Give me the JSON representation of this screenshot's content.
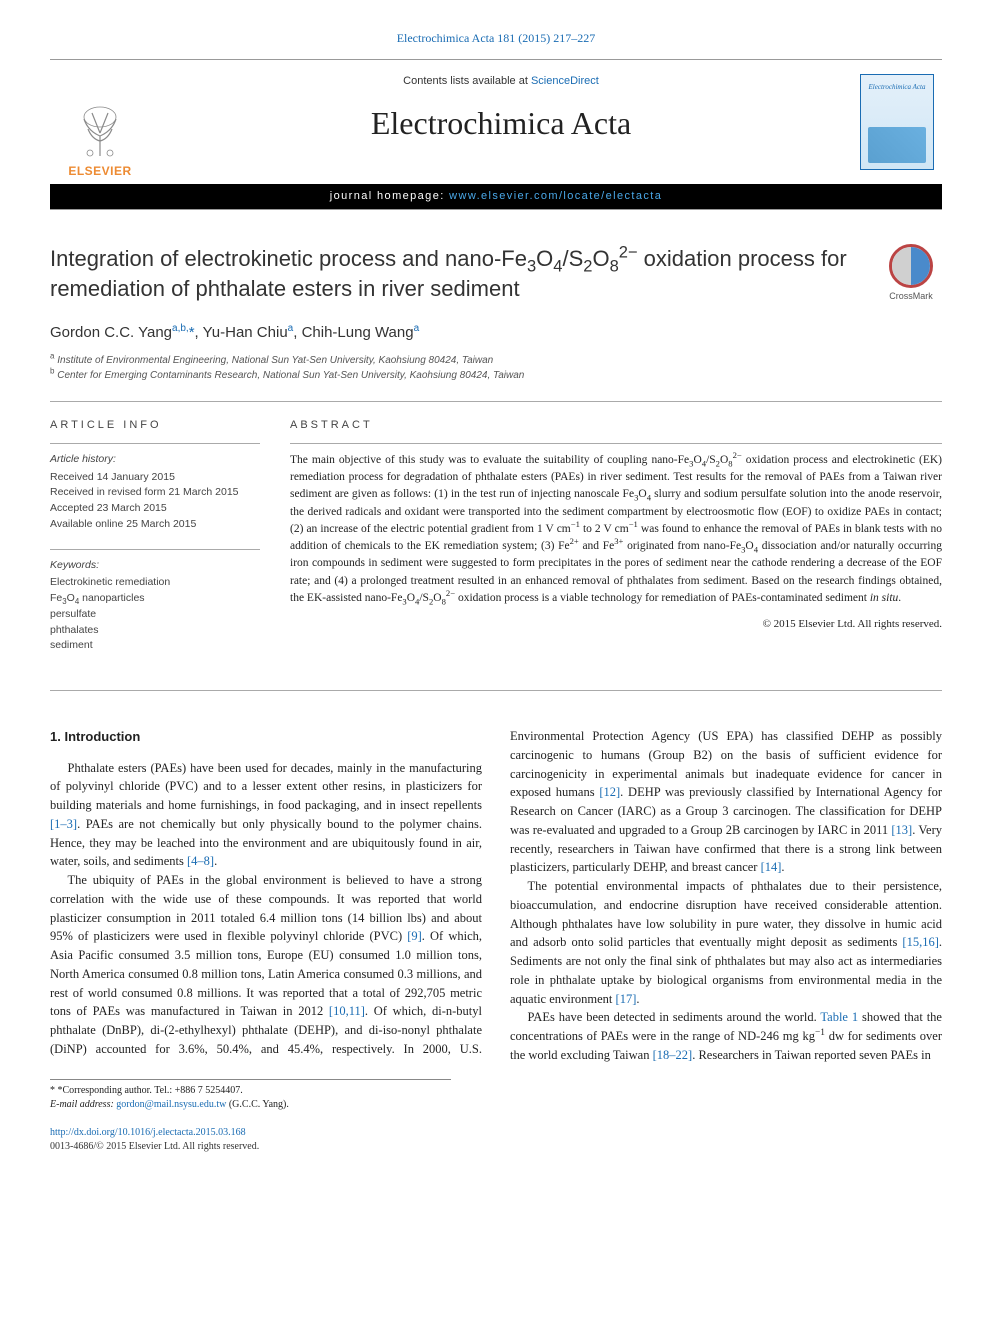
{
  "colors": {
    "link": "#1a6cb3",
    "text": "#222222",
    "elsevier_orange": "#ed8b33",
    "rule": "#aaaaaa",
    "black_bar_bg": "#000000",
    "black_bar_link": "#4aa8e8"
  },
  "typography": {
    "body_font": "Georgia, 'Times New Roman', serif",
    "ui_font": "Arial, sans-serif",
    "journal_title_pt": 32,
    "article_title_pt": 22,
    "authors_pt": 15,
    "abstract_pt": 11.5,
    "body_pt": 12.5,
    "footnote_pt": 10
  },
  "top_citation": "Electrochimica Acta 181 (2015) 217–227",
  "header": {
    "contents_prefix": "Contents lists available at ",
    "contents_link": "ScienceDirect",
    "journal_title": "Electrochimica Acta",
    "homepage_prefix": "journal homepage: ",
    "homepage_url": "www.elsevier.com/locate/electacta",
    "publisher_logo_text": "ELSEVIER",
    "cover_title": "Electrochimica Acta"
  },
  "crossmark_label": "CrossMark",
  "article": {
    "title_html": "Integration of electrokinetic process and nano-Fe<sub>3</sub>O<sub>4</sub>/S<sub>2</sub>O<sub>8</sub><sup>2−</sup> oxidation process for remediation of phthalate esters in river sediment",
    "authors_html": "Gordon C.C. Yang<sup><a>a</a>,<a>b</a>,</sup><span class=\"star\">*</span>, Yu-Han Chiu<sup><a>a</a></sup>, Chih-Lung Wang<sup><a>a</a></sup>",
    "affiliations": [
      "a Institute of Environmental Engineering, National Sun Yat-Sen University, Kaohsiung 80424, Taiwan",
      "b Center for Emerging Contaminants Research, National Sun Yat-Sen University, Kaohsiung 80424, Taiwan"
    ]
  },
  "article_info": {
    "heading": "ARTICLE INFO",
    "history_label": "Article history:",
    "history": [
      "Received 14 January 2015",
      "Received in revised form 21 March 2015",
      "Accepted 23 March 2015",
      "Available online 25 March 2015"
    ],
    "keywords_label": "Keywords:",
    "keywords": [
      "Electrokinetic remediation",
      "Fe3O4 nanoparticles",
      "persulfate",
      "phthalates",
      "sediment"
    ]
  },
  "abstract": {
    "heading": "ABSTRACT",
    "text_html": "The main objective of this study was to evaluate the suitability of coupling nano-Fe<sub>3</sub>O<sub>4</sub>/S<sub>2</sub>O<sub>8</sub><sup>2−</sup> oxidation process and electrokinetic (EK) remediation process for degradation of phthalate esters (PAEs) in river sediment. Test results for the removal of PAEs from a Taiwan river sediment are given as follows: (1) in the test run of injecting nanoscale Fe<sub>3</sub>O<sub>4</sub> slurry and sodium persulfate solution into the anode reservoir, the derived radicals and oxidant were transported into the sediment compartment by electroosmotic flow (EOF) to oxidize PAEs in contact; (2) an increase of the electric potential gradient from 1 V cm<sup>−1</sup> to 2 V cm<sup>−1</sup> was found to enhance the removal of PAEs in blank tests with no addition of chemicals to the EK remediation system; (3) Fe<sup>2+</sup> and Fe<sup>3+</sup> originated from nano-Fe<sub>3</sub>O<sub>4</sub> dissociation and/or naturally occurring iron compounds in sediment were suggested to form precipitates in the pores of sediment near the cathode rendering a decrease of the EOF rate; and (4) a prolonged treatment resulted in an enhanced removal of phthalates from sediment. Based on the research findings obtained, the EK-assisted nano-Fe<sub>3</sub>O<sub>4</sub>/S<sub>2</sub>O<sub>8</sub><sup>2−</sup> oxidation process is a viable technology for remediation of PAEs-contaminated sediment <i>in situ</i>.",
    "copyright": "© 2015 Elsevier Ltd. All rights reserved."
  },
  "section1": {
    "heading": "1. Introduction",
    "paragraphs_html": [
      "Phthalate esters (PAEs) have been used for decades, mainly in the manufacturing of polyvinyl chloride (PVC) and to a lesser extent other resins, in plasticizers for building materials and home furnishings, in food packaging, and in insect repellents <a>[1–3]</a>. PAEs are not chemically but only physically bound to the polymer chains. Hence, they may be leached into the environment and are ubiquitously found in air, water, soils, and sediments <a>[4–8]</a>.",
      "The ubiquity of PAEs in the global environment is believed to have a strong correlation with the wide use of these compounds. It was reported that world plasticizer consumption in 2011 totaled 6.4 million tons (14 billion lbs) and about 95% of plasticizers were used in flexible polyvinyl chloride (PVC) <a>[9]</a>. Of which, Asia Pacific consumed 3.5 million tons, Europe (EU) consumed 1.0 million tons, North America consumed 0.8 million tons, Latin America consumed 0.3 millions, and rest of world consumed 0.8 millions. It was reported that a total of 292,705 metric tons of PAEs was manufactured in Taiwan in 2012 <a>[10,11]</a>. Of which, di-n-butyl phthalate (DnBP), di-(2-ethylhexyl) phthalate (DEHP), and di-iso-nonyl phthalate (DiNP) accounted for 3.6%, 50.4%, and 45.4%, respectively. In 2000, U.S. Environmental Protection Agency (US EPA) has classified DEHP as possibly carcinogenic to humans (Group B2) on the basis of sufficient evidence for carcinogenicity in experimental animals but inadequate evidence for cancer in exposed humans <a>[12]</a>. DEHP was previously classified by International Agency for Research on Cancer (IARC) as a Group 3 carcinogen. The classification for DEHP was re-evaluated and upgraded to a Group 2B carcinogen by IARC in 2011 <a>[13]</a>. Very recently, researchers in Taiwan have confirmed that there is a strong link between plasticizers, particularly DEHP, and breast cancer <a>[14]</a>.",
      "The potential environmental impacts of phthalates due to their persistence, bioaccumulation, and endocrine disruption have received considerable attention. Although phthalates have low solubility in pure water, they dissolve in humic acid and adsorb onto solid particles that eventually might deposit as sediments <a>[15,16]</a>. Sediments are not only the final sink of phthalates but may also act as intermediaries role in phthalate uptake by biological organisms from environmental media in the aquatic environment <a>[17]</a>.",
      "PAEs have been detected in sediments around the world. <a>Table 1</a> showed that the concentrations of PAEs were in the range of ND-246 mg kg<sup>−1</sup> dw for sediments over the world excluding Taiwan <a>[18–22]</a>. Researchers in Taiwan reported seven PAEs in"
    ]
  },
  "footnotes": {
    "corresponding": "* *Corresponding author. Tel.: +886 7 5254407.",
    "email_label": "E-mail address: ",
    "email": "gordon@mail.nsysu.edu.tw",
    "email_suffix": " (G.C.C. Yang)."
  },
  "footer": {
    "doi": "http://dx.doi.org/10.1016/j.electacta.2015.03.168",
    "issn_line": "0013-4686/© 2015 Elsevier Ltd. All rights reserved."
  }
}
